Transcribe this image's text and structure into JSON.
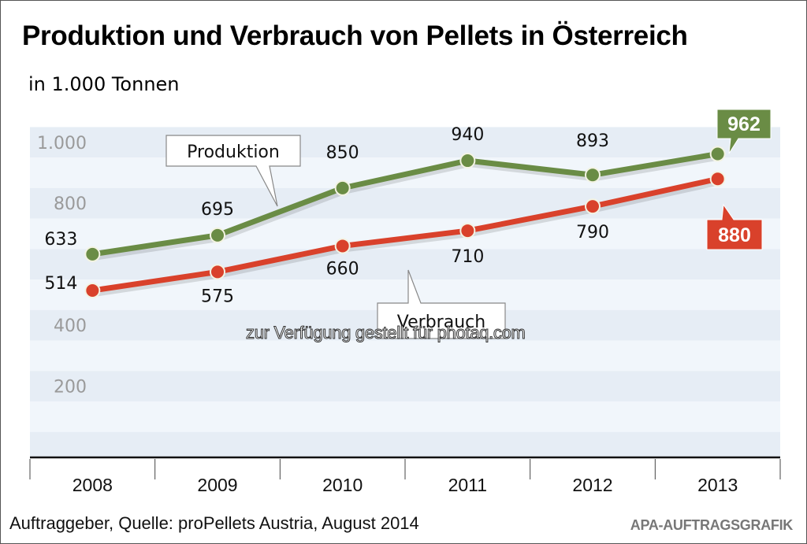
{
  "header": {
    "title": "Produktion und Verbrauch von Pellets in Österreich",
    "subtitle": "in 1.000 Tonnen"
  },
  "footer": {
    "source": "Auftraggeber, Quelle: proPellets Austria, August 2014",
    "credit": "APA-AUFTRAGSGRAFIK"
  },
  "watermark": "zur Verfügung gestellt für photaq.com",
  "colors": {
    "produktion": "#6a8c45",
    "verbrauch": "#d9412b",
    "band_dark": "#e6edf5",
    "band_light": "#f1f6fb",
    "tick_label": "#9a9a9a"
  },
  "chart_data": {
    "type": "line",
    "title": "Produktion und Verbrauch von Pellets in Österreich",
    "subtitle": "in 1.000 Tonnen",
    "xlabel": "",
    "ylabel": "",
    "categories": [
      "2008",
      "2009",
      "2010",
      "2011",
      "2012",
      "2013"
    ],
    "ylim": [
      0,
      1000
    ],
    "yticks": [
      {
        "value": 200,
        "label": "200"
      },
      {
        "value": 400,
        "label": "400"
      },
      {
        "value": 800,
        "label": "800"
      },
      {
        "value": 1000,
        "label": "1.000"
      }
    ],
    "grid": "alternating horizontal bands",
    "series": [
      {
        "name": "Produktion",
        "values": [
          633,
          695,
          850,
          940,
          893,
          962
        ],
        "labels": [
          "633",
          "695",
          "850",
          "940",
          "893",
          "962"
        ],
        "highlight_last": true
      },
      {
        "name": "Verbrauch",
        "values": [
          514,
          575,
          660,
          710,
          790,
          880
        ],
        "labels": [
          "514",
          "575",
          "660",
          "710",
          "790",
          "880"
        ],
        "highlight_last": true
      }
    ],
    "legend": "callout labels attached to lines"
  }
}
